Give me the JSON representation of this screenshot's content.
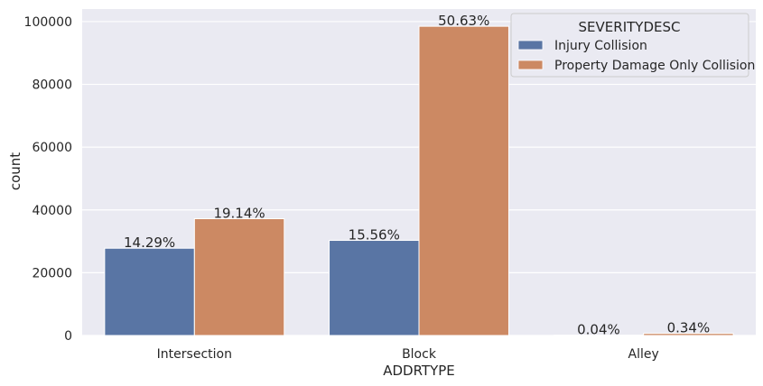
{
  "chart_data": {
    "type": "bar",
    "xlabel": "ADDRTYPE",
    "ylabel": "count",
    "categories": [
      "Intersection",
      "Block",
      "Alley"
    ],
    "series": [
      {
        "name": "Injury Collision",
        "color": "#5975a4",
        "values": [
          27800,
          30300,
          80
        ],
        "labels": [
          "14.29%",
          "15.56%",
          "0.04%"
        ]
      },
      {
        "name": "Property Damage Only Collision",
        "color": "#cc8963",
        "values": [
          37200,
          98500,
          660
        ],
        "labels": [
          "19.14%",
          "50.63%",
          "0.34%"
        ]
      }
    ],
    "ylim": [
      0,
      104000
    ],
    "yticks": [
      "0",
      "20000",
      "40000",
      "60000",
      "80000",
      "100000"
    ],
    "legend": {
      "title": "SEVERITYDESC",
      "position": "top-right"
    },
    "grid": true,
    "background": "#eaeaf2"
  }
}
